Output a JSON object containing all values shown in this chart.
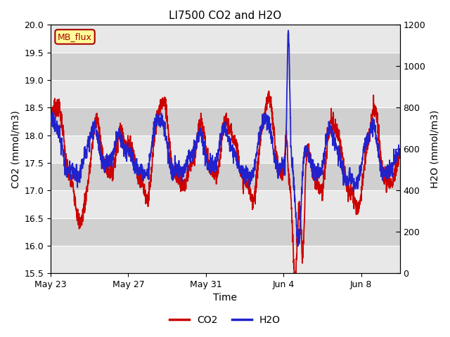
{
  "title": "LI7500 CO2 and H2O",
  "xlabel": "Time",
  "ylabel_left": "CO2 (mmol/m3)",
  "ylabel_right": "H2O (mmol/m3)",
  "co2_ylim": [
    15.5,
    20.0
  ],
  "h2o_ylim": [
    0,
    1200
  ],
  "co2_yticks": [
    15.5,
    16.0,
    16.5,
    17.0,
    17.5,
    18.0,
    18.5,
    19.0,
    19.5,
    20.0
  ],
  "h2o_yticks": [
    0,
    200,
    400,
    600,
    800,
    1000,
    1200
  ],
  "xtick_positions": [
    0,
    4,
    8,
    12,
    16
  ],
  "xtick_labels": [
    "May 23",
    "May 27",
    "May 31",
    "Jun 4",
    "Jun 8"
  ],
  "xlim": [
    0,
    18
  ],
  "co2_color": "#cc0000",
  "h2o_color": "#2222cc",
  "background_color": "#ffffff",
  "plot_bg_color": "#e8e8e8",
  "label_box_text": "MB_flux",
  "label_box_facecolor": "#ffff99",
  "label_box_edgecolor": "#aa0000",
  "title_fontsize": 11,
  "axis_label_fontsize": 10,
  "tick_fontsize": 9,
  "legend_fontsize": 10,
  "line_width": 1.3
}
